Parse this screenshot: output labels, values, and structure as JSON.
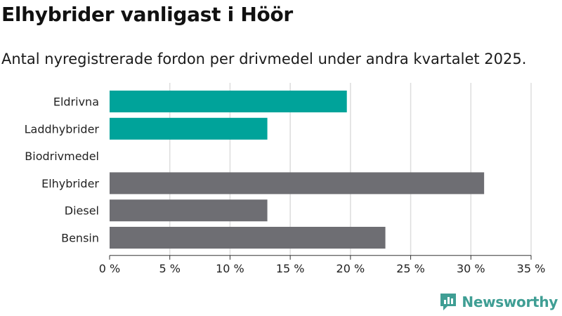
{
  "title": "Elhybrider vanligast i Höör",
  "subtitle": "Antal nyregistrerade fordon per drivmedel under andra kvartalet 2025.",
  "brand": "Newsworthy",
  "colors": {
    "electric": "#00a39a",
    "fossil": "#6e6e73",
    "grid": "#dddddd",
    "brand": "#3f9e94"
  },
  "chart_data": {
    "type": "bar",
    "orientation": "horizontal",
    "categories": [
      "Eldrivna",
      "Laddhybrider",
      "Biodrivmedel",
      "Elhybrider",
      "Diesel",
      "Bensin"
    ],
    "values": [
      19.7,
      13.1,
      0,
      31.1,
      13.1,
      22.9
    ],
    "bar_colors": [
      "#00a39a",
      "#00a39a",
      "#00a39a",
      "#6e6e73",
      "#6e6e73",
      "#6e6e73"
    ],
    "xlim": [
      0,
      35
    ],
    "xticks": [
      0,
      5,
      10,
      15,
      20,
      25,
      30,
      35
    ],
    "xtick_labels": [
      "0 %",
      "5 %",
      "10 %",
      "15 %",
      "20 %",
      "25 %",
      "30 %",
      "35 %"
    ],
    "grid": true,
    "legend": "none"
  }
}
